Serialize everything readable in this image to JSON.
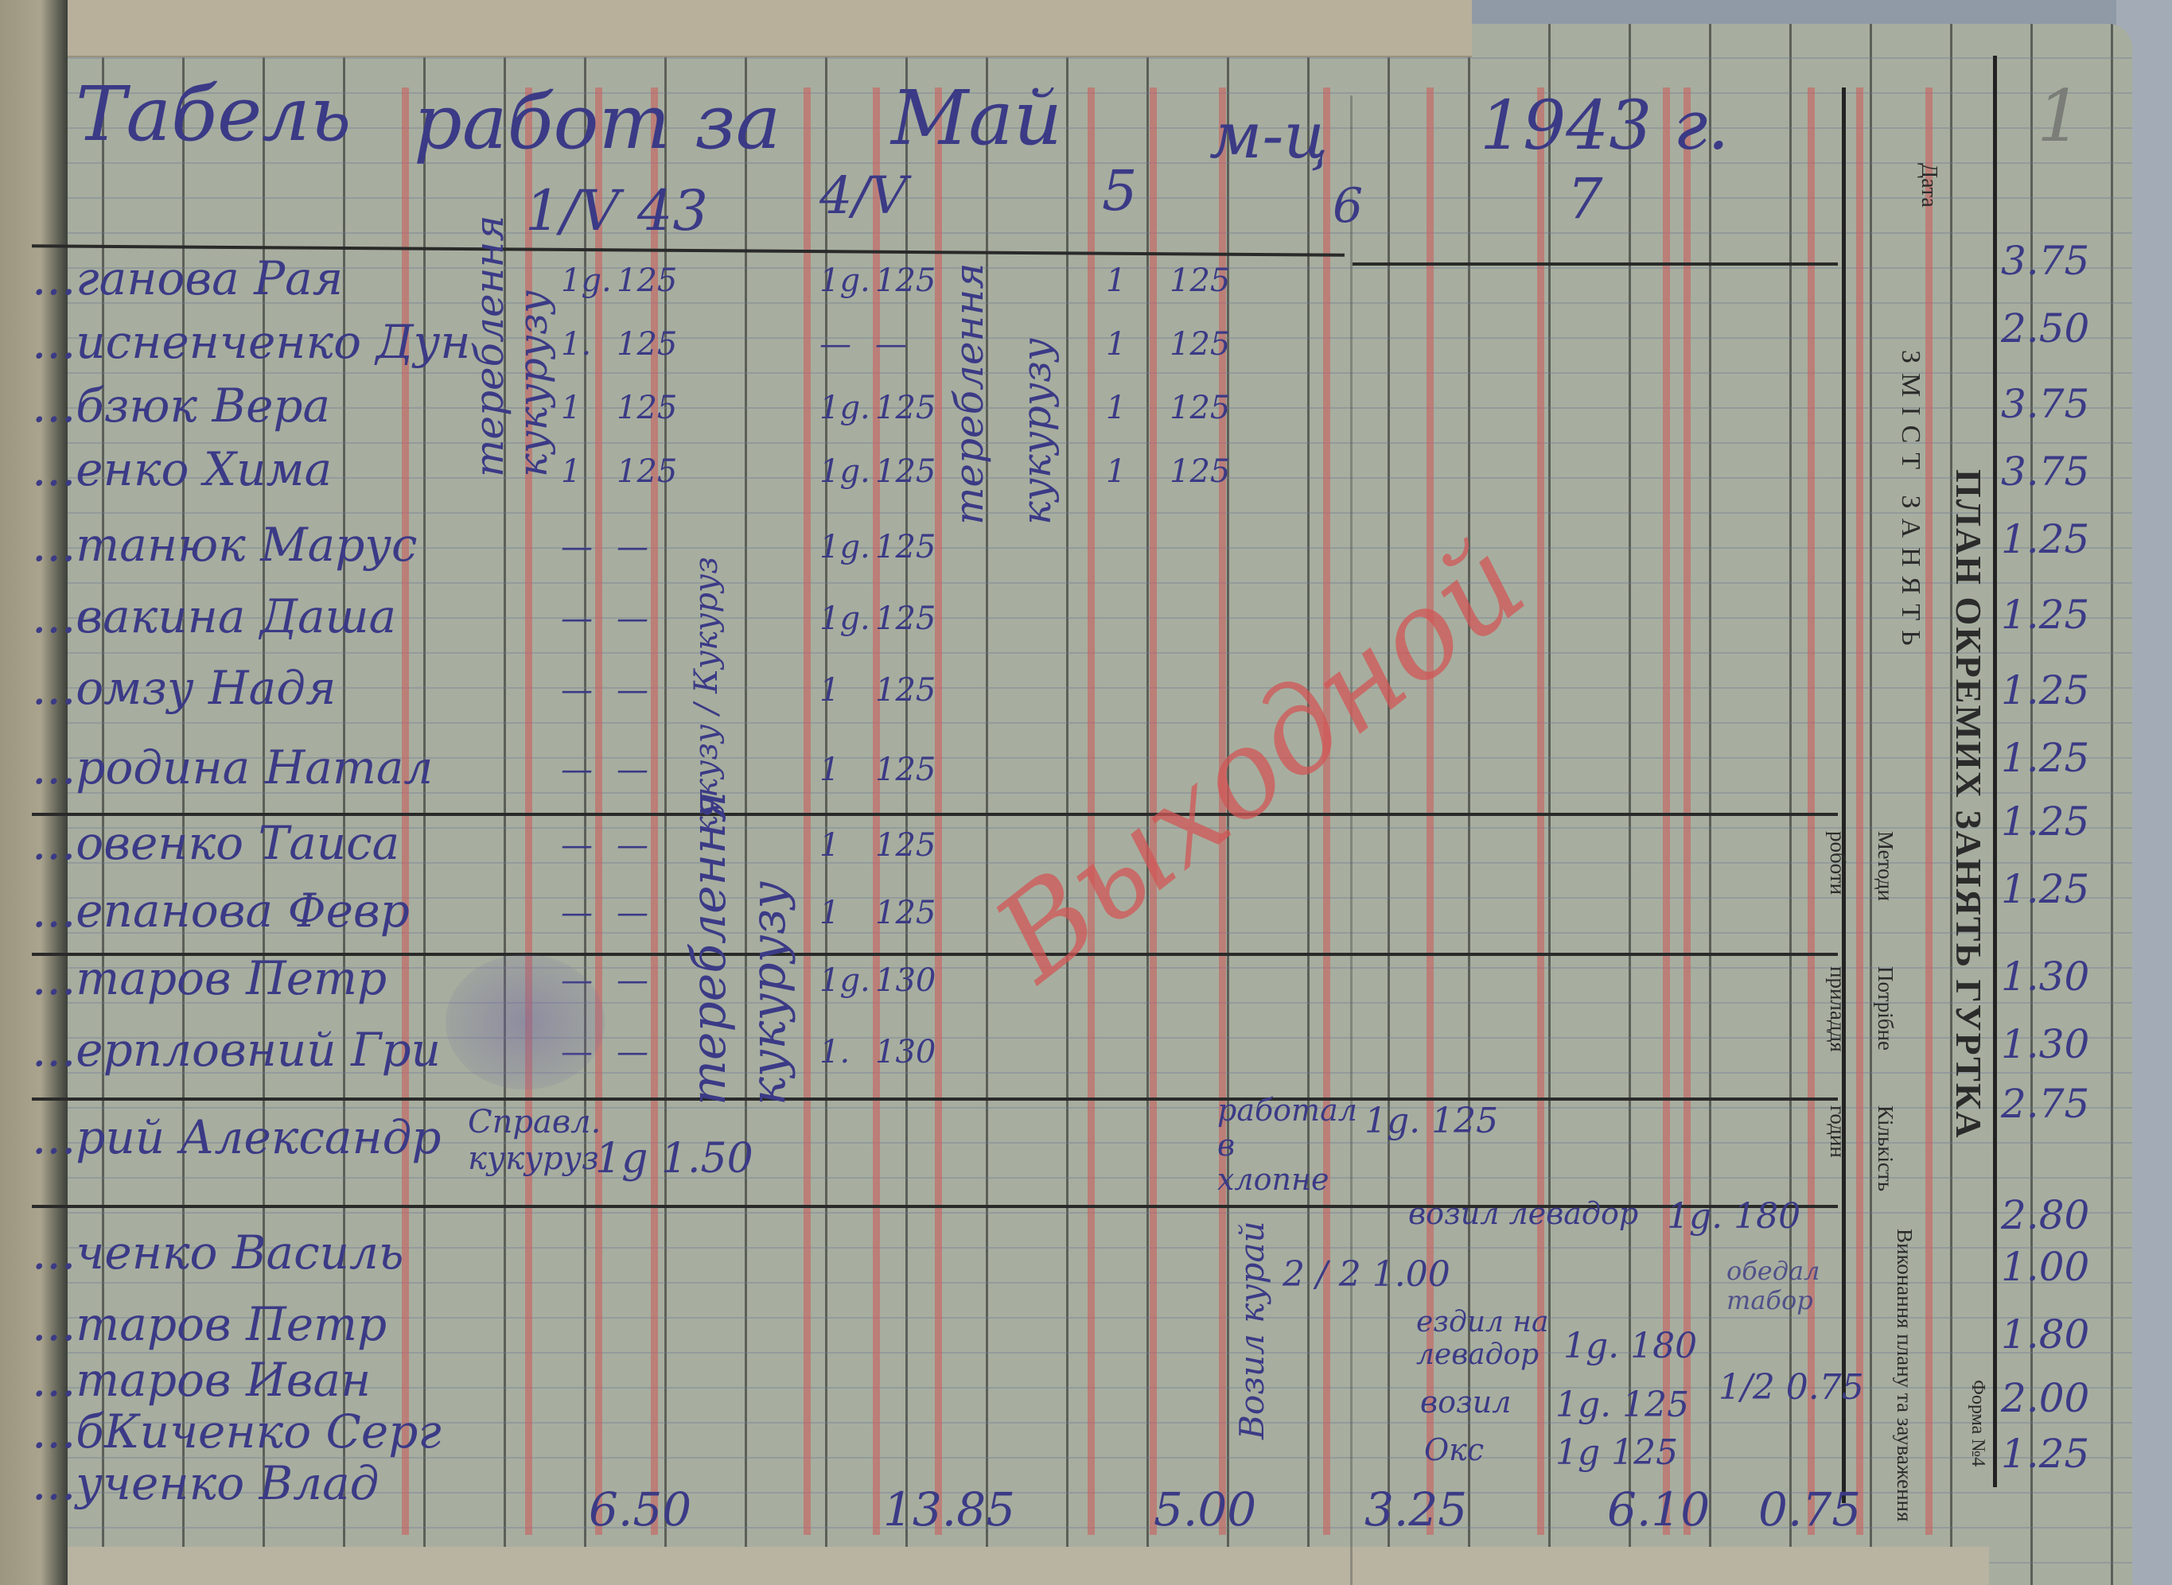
{
  "document": {
    "title_parts": [
      "Табель",
      "работ за",
      "Май",
      "м-ц",
      "1943 г."
    ],
    "page_number": "1",
    "dates": [
      "1/V 43",
      "4/V",
      "5",
      "6",
      "7"
    ],
    "work_type_vertical": [
      "тереблення",
      "кукурузу",
      "тереблення",
      "кукурузу",
      "тереблення",
      "кукурузу"
    ],
    "red_stamp_word": "Выходной",
    "names": [
      "...ганова Рая",
      "...исненченко Дун",
      "...бзюк Вера",
      "...енко Хима",
      "...танюк Марус",
      "...вакина Даша",
      "...омзу Надя",
      "...родина Натал",
      "...овенко Таиса",
      "...епанова Февр",
      "...таров Петр",
      "...ерпловний Гри",
      "...рий Александр",
      "...ченко Василь",
      "...таров Петр",
      "...таров Иван",
      "...бКиченко Серг",
      "...ученко Влад"
    ],
    "rows": [
      [
        "1g.",
        "125",
        "1g.",
        "125",
        "1",
        "125"
      ],
      [
        "1.",
        "125",
        "—",
        "—",
        "1",
        "125"
      ],
      [
        "1",
        "125",
        "1g.",
        "125",
        "1",
        "125"
      ],
      [
        "1",
        "125",
        "1g.",
        "125",
        "1",
        "125"
      ],
      [
        "—",
        "—",
        "1g.",
        "125",
        "",
        ""
      ],
      [
        "—",
        "—",
        "1g.",
        "125",
        "",
        ""
      ],
      [
        "—",
        "—",
        "1",
        "125",
        "",
        ""
      ],
      [
        "—",
        "—",
        "1",
        "125",
        "",
        ""
      ],
      [
        "—",
        "—",
        "1",
        "125",
        "",
        ""
      ],
      [
        "—",
        "—",
        "1",
        "125",
        "",
        ""
      ],
      [
        "—",
        "—",
        "1g.",
        "130",
        "",
        ""
      ],
      [
        "—",
        "—",
        "1.",
        "130",
        "",
        ""
      ]
    ],
    "extra_entries": {
      "spravl": "Справл. кукуруз",
      "spravl_value": "1g 1.50",
      "worked": "работал в хлопне",
      "worked_value": "1g. 125",
      "vozil_kurai": "Возил курай",
      "vozil_kurai_values": "2 / 2 1.00",
      "vozil_levada": "возил левадор",
      "vozil_levada_value": "1g. 180",
      "ezdil": "ездил на левадор",
      "ezdil_value": "1g. 180",
      "vozil": "возил",
      "vozil_value": "1g. 125",
      "oks": "Окс",
      "oks_value": "1g 125",
      "obed": "обедал табор",
      "obed_value": "1/2 0.75",
      "kuruz_label": "кукузу / Кукуруз"
    },
    "totals": [
      "6.50",
      "13.85",
      "5.00",
      "3.25",
      "6.10",
      "0.75"
    ],
    "right_values": [
      "3.75",
      "2.50",
      "3.75",
      "3.75",
      "1.25",
      "1.25",
      "1.25",
      "1.25",
      "1.25",
      "1.25",
      "1.30",
      "1.30",
      "2.75",
      "2.80",
      "1.00",
      "1.80",
      "2.00",
      "1.25"
    ],
    "printed": {
      "form_title": "ПЛАН ОКРЕМИХ ЗАНЯТЬ ГУРТКА",
      "date": "Дата",
      "content": "ЗМІСТ ЗАНЯТЬ",
      "methods": "Методи роботи",
      "tools": "Потрібне приладдя",
      "hours": "Кількість годин",
      "execution": "Виконання плану та зауваження",
      "form_no": "Форма №4"
    },
    "colors": {
      "ink": "#3b3a86",
      "paper": "#a7ae9f",
      "red_pencil": "#c85f5f"
    }
  }
}
